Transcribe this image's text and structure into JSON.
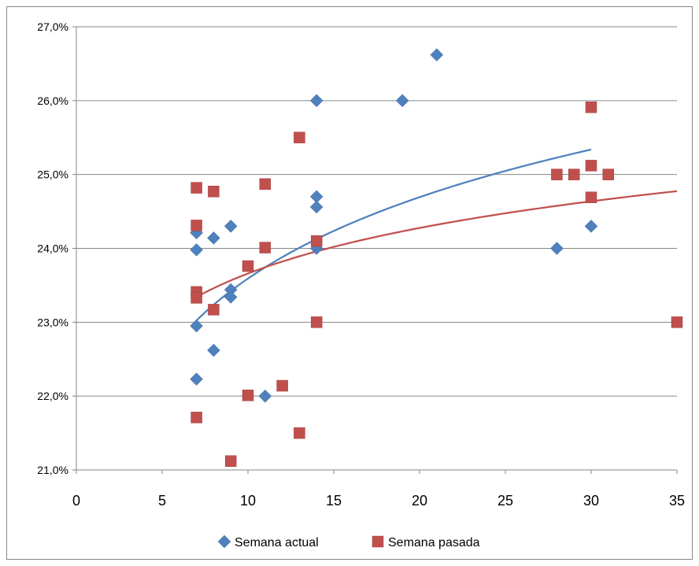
{
  "chart_data": {
    "type": "scatter",
    "title": "",
    "xlabel": "",
    "ylabel": "",
    "xlim": [
      0,
      35
    ],
    "ylim": [
      0.21,
      0.27
    ],
    "x_ticks": [
      0,
      5,
      10,
      15,
      20,
      25,
      30,
      35
    ],
    "x_tick_labels": [
      "0",
      "5",
      "10",
      "15",
      "20",
      "25",
      "30",
      "35"
    ],
    "y_ticks": [
      0.21,
      0.22,
      0.23,
      0.24,
      0.25,
      0.26,
      0.27
    ],
    "y_tick_labels": [
      "21,0%",
      "22,0%",
      "23,0%",
      "24,0%",
      "25,0%",
      "26,0%",
      "27,0%"
    ],
    "grid": "horizontal",
    "legend_position": "bottom",
    "series": [
      {
        "name": "Semana actual",
        "marker": "diamond",
        "color": "#4F81BD",
        "points": [
          [
            7,
            0.2421
          ],
          [
            7,
            0.2398
          ],
          [
            7,
            0.2295
          ],
          [
            7,
            0.2223
          ],
          [
            8,
            0.2414
          ],
          [
            8,
            0.2262
          ],
          [
            9,
            0.243
          ],
          [
            9,
            0.2344
          ],
          [
            9,
            0.2334
          ],
          [
            11,
            0.22
          ],
          [
            14,
            0.26
          ],
          [
            14,
            0.247
          ],
          [
            14,
            0.2456
          ],
          [
            14,
            0.24
          ],
          [
            19,
            0.26
          ],
          [
            21,
            0.2662
          ],
          [
            28,
            0.24
          ],
          [
            30,
            0.243
          ]
        ],
        "trendline": {
          "type": "logarithmic",
          "a": 0.1993,
          "b": 0.0159,
          "x_range": [
            7,
            30
          ]
        }
      },
      {
        "name": "Semana pasada",
        "marker": "square",
        "color": "#C0504D",
        "points": [
          [
            7,
            0.2482
          ],
          [
            7,
            0.2431
          ],
          [
            7,
            0.2341
          ],
          [
            7,
            0.2333
          ],
          [
            7,
            0.2171
          ],
          [
            8,
            0.2477
          ],
          [
            8,
            0.2317
          ],
          [
            9,
            0.2112
          ],
          [
            10,
            0.2376
          ],
          [
            10,
            0.2201
          ],
          [
            11,
            0.2487
          ],
          [
            11,
            0.2401
          ],
          [
            12,
            0.2214
          ],
          [
            13,
            0.255
          ],
          [
            13,
            0.215
          ],
          [
            14,
            0.241
          ],
          [
            14,
            0.23
          ],
          [
            28,
            0.25
          ],
          [
            29,
            0.25
          ],
          [
            30,
            0.2591
          ],
          [
            30,
            0.2512
          ],
          [
            30,
            0.2469
          ],
          [
            31,
            0.25
          ],
          [
            35,
            0.23
          ]
        ],
        "trendline": {
          "type": "logarithmic",
          "a": 0.2161,
          "b": 0.0089,
          "x_range": [
            7,
            35
          ]
        }
      }
    ]
  }
}
